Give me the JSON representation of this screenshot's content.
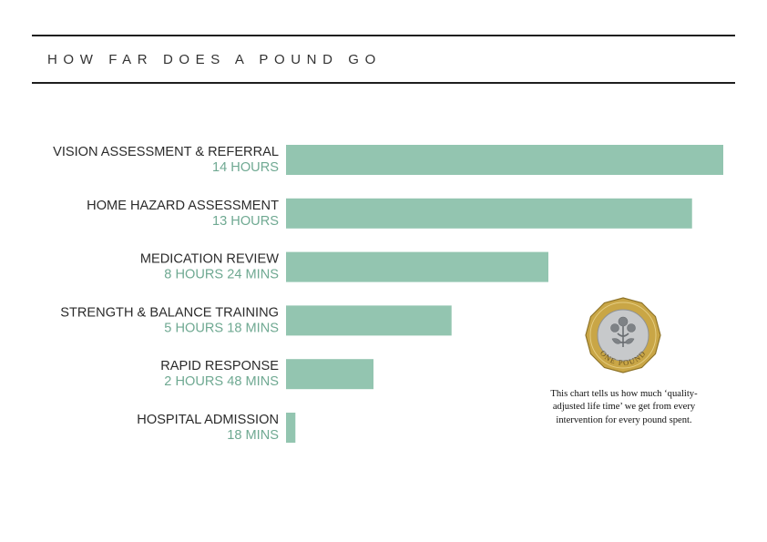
{
  "header": {
    "title": "HOW FAR DOES A POUND GO"
  },
  "colors": {
    "bar": "#93C5B0",
    "value_text": "#6FA992",
    "rule": "#1f1f1f"
  },
  "chart_data": {
    "type": "bar",
    "orientation": "horizontal",
    "title": "HOW FAR DOES A POUND GO",
    "categories": [
      "VISION ASSESSMENT & REFERRAL",
      "HOME HAZARD ASSESSMENT",
      "MEDICATION REVIEW",
      "STRENGTH & BALANCE TRAINING",
      "RAPID RESPONSE",
      "HOSPITAL ADMISSION"
    ],
    "value_labels": [
      "14 HOURS",
      "13 HOURS",
      "8 HOURS 24 MINS",
      "5 HOURS 18 MINS",
      "2 HOURS 48 MINS",
      "18 MINS"
    ],
    "values": [
      840,
      780,
      504,
      318,
      168,
      18
    ],
    "unit": "minutes of quality-adjusted life time per pound",
    "xlim": [
      0,
      840
    ],
    "grid": false,
    "legend": "none"
  },
  "coin": {
    "icon": "one-pound-coin-icon",
    "inscription": "ONE POUND",
    "outer_color": "#C9A646",
    "inner_color": "#C7C9CB"
  },
  "note": {
    "text": "This chart tells us how much ‘quality-adjusted life time’ we get from every intervention for every pound spent."
  }
}
